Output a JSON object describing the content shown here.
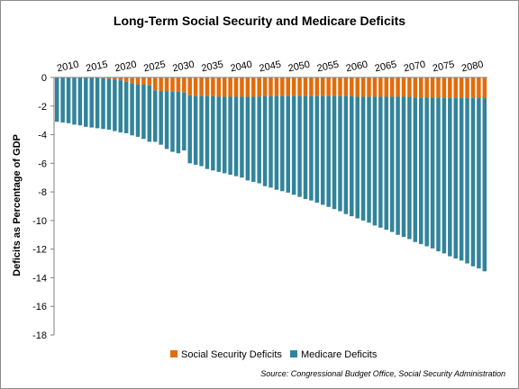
{
  "chart_data": {
    "type": "bar",
    "stacked": true,
    "title": "Long-Term Social Security and Medicare Deficits",
    "ylabel": "Deficits  as  Percentage of GDP",
    "xlabel": "",
    "ylim": [
      -18,
      0
    ],
    "yticks": [
      0,
      -2,
      -4,
      -6,
      -8,
      -10,
      -12,
      -14,
      -16,
      -18
    ],
    "x_tick_labels": [
      "2010",
      "2015",
      "2020",
      "2025",
      "2030",
      "2035",
      "2040",
      "2045",
      "2050",
      "2055",
      "2060",
      "2065",
      "2070",
      "2075",
      "2080"
    ],
    "x_axis_position": "top",
    "grid": false,
    "legend_position": "bottom",
    "categories": [
      2008,
      2009,
      2010,
      2011,
      2012,
      2013,
      2014,
      2015,
      2016,
      2017,
      2018,
      2019,
      2020,
      2021,
      2022,
      2023,
      2024,
      2025,
      2026,
      2027,
      2028,
      2029,
      2030,
      2031,
      2032,
      2033,
      2034,
      2035,
      2036,
      2037,
      2038,
      2039,
      2040,
      2041,
      2042,
      2043,
      2044,
      2045,
      2046,
      2047,
      2048,
      2049,
      2050,
      2051,
      2052,
      2053,
      2054,
      2055,
      2056,
      2057,
      2058,
      2059,
      2060,
      2061,
      2062,
      2063,
      2064,
      2065,
      2066,
      2067,
      2068,
      2069,
      2070,
      2071,
      2072,
      2073,
      2074,
      2075,
      2076,
      2077,
      2078,
      2079,
      2080,
      2081,
      2082
    ],
    "series": [
      {
        "name": "Social Security Deficits",
        "color": "#E36C0A",
        "values": [
          0,
          0,
          0,
          0,
          0,
          0,
          0,
          0,
          -0.05,
          -0.1,
          -0.15,
          -0.2,
          -0.3,
          -0.4,
          -0.5,
          -0.5,
          -0.55,
          -0.9,
          -0.95,
          -0.95,
          -1.0,
          -1.0,
          -1.05,
          -1.25,
          -1.3,
          -1.3,
          -1.3,
          -1.3,
          -1.35,
          -1.35,
          -1.35,
          -1.35,
          -1.35,
          -1.35,
          -1.35,
          -1.35,
          -1.3,
          -1.3,
          -1.3,
          -1.3,
          -1.3,
          -1.3,
          -1.3,
          -1.3,
          -1.3,
          -1.3,
          -1.3,
          -1.3,
          -1.3,
          -1.3,
          -1.3,
          -1.3,
          -1.35,
          -1.35,
          -1.35,
          -1.35,
          -1.35,
          -1.35,
          -1.35,
          -1.35,
          -1.35,
          -1.35,
          -1.4,
          -1.4,
          -1.4,
          -1.4,
          -1.4,
          -1.4,
          -1.45,
          -1.45,
          -1.45,
          -1.45,
          -1.45,
          -1.45,
          -1.45
        ]
      },
      {
        "name": "Medicare Deficits",
        "color": "#31849B",
        "values": [
          -3.1,
          -3.15,
          -3.2,
          -3.3,
          -3.35,
          -3.45,
          -3.5,
          -3.55,
          -3.6,
          -3.65,
          -3.75,
          -3.85,
          -3.9,
          -4.05,
          -4.15,
          -4.3,
          -4.5,
          -4.5,
          -4.7,
          -5.0,
          -5.2,
          -5.3,
          -5.1,
          -6.0,
          -6.1,
          -6.2,
          -6.4,
          -6.5,
          -6.6,
          -6.7,
          -6.8,
          -6.9,
          -7.0,
          -7.2,
          -7.3,
          -7.4,
          -7.6,
          -7.7,
          -7.85,
          -7.95,
          -8.05,
          -8.2,
          -8.35,
          -8.5,
          -8.6,
          -8.75,
          -8.9,
          -9.05,
          -9.2,
          -9.35,
          -9.55,
          -9.7,
          -9.85,
          -10.0,
          -10.15,
          -10.35,
          -10.5,
          -10.65,
          -10.8,
          -11.0,
          -11.15,
          -11.3,
          -11.5,
          -11.65,
          -11.8,
          -11.95,
          -12.15,
          -12.3,
          -12.5,
          -12.65,
          -12.8,
          -13.0,
          -13.2,
          -13.35,
          -13.55
        ]
      }
    ],
    "source": "Source: Congressional Budget Office, Social Security Administration"
  }
}
